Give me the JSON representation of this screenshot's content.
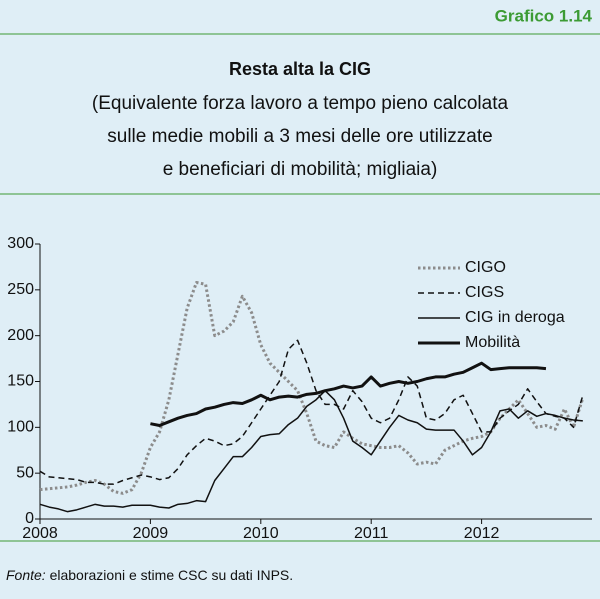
{
  "header": "Grafico 1.14",
  "footer": {
    "source_label": "Fonte:",
    "source_text": " elaborazioni e stime CSC su dati INPS."
  },
  "chart_data": {
    "type": "line",
    "title": "Resta alta la CIG",
    "subtitle": [
      "(Equivalente forza lavoro a tempo pieno calcolata",
      "sulle medie mobili a 3 mesi delle ore utilizzate",
      "e beneficiari di mobilità; migliaia)"
    ],
    "x": [
      2008,
      2008.083,
      2008.167,
      2008.25,
      2008.333,
      2008.417,
      2008.5,
      2008.583,
      2008.667,
      2008.75,
      2008.833,
      2008.917,
      2009,
      2009.083,
      2009.167,
      2009.25,
      2009.333,
      2009.417,
      2009.5,
      2009.583,
      2009.667,
      2009.75,
      2009.833,
      2009.917,
      2010,
      2010.083,
      2010.167,
      2010.25,
      2010.333,
      2010.417,
      2010.5,
      2010.583,
      2010.667,
      2010.75,
      2010.833,
      2010.917,
      2011,
      2011.083,
      2011.167,
      2011.25,
      2011.333,
      2011.417,
      2011.5,
      2011.583,
      2011.667,
      2011.75,
      2011.833,
      2011.917,
      2012,
      2012.083,
      2012.167,
      2012.25,
      2012.333,
      2012.417,
      2012.5,
      2012.583,
      2012.667,
      2012.75,
      2012.833,
      2012.917
    ],
    "series": [
      {
        "name": "CIGO",
        "color": "#8c8c8c",
        "style": "dotted",
        "width": 3,
        "values": [
          32,
          33,
          34,
          35,
          37,
          40,
          42,
          38,
          30,
          28,
          32,
          50,
          78,
          95,
          130,
          180,
          230,
          258,
          256,
          200,
          205,
          215,
          243,
          225,
          190,
          170,
          160,
          150,
          140,
          115,
          85,
          80,
          78,
          95,
          88,
          82,
          80,
          78,
          78,
          80,
          72,
          60,
          62,
          60,
          75,
          80,
          85,
          88,
          90,
          95,
          110,
          120,
          130,
          115,
          100,
          102,
          98,
          120,
          100,
          132
        ]
      },
      {
        "name": "CIGS",
        "color": "#111111",
        "style": "dashed",
        "width": 1.5,
        "values": [
          52,
          46,
          45,
          44,
          43,
          40,
          40,
          38,
          38,
          42,
          45,
          48,
          46,
          43,
          45,
          55,
          70,
          80,
          88,
          85,
          80,
          82,
          90,
          105,
          120,
          135,
          150,
          185,
          195,
          170,
          140,
          125,
          125,
          120,
          140,
          128,
          110,
          105,
          110,
          130,
          155,
          145,
          110,
          108,
          115,
          130,
          135,
          115,
          95,
          95,
          110,
          118,
          125,
          142,
          128,
          115,
          112,
          110,
          100,
          135
        ]
      },
      {
        "name": "CIG in deroga",
        "color": "#111111",
        "style": "solid",
        "width": 1.5,
        "values": [
          16,
          13,
          11,
          8,
          10,
          13,
          16,
          14,
          14,
          13,
          15,
          15,
          15,
          13,
          12,
          16,
          17,
          20,
          19,
          42,
          55,
          68,
          68,
          78,
          90,
          92,
          93,
          103,
          110,
          123,
          130,
          140,
          130,
          110,
          85,
          78,
          70,
          85,
          100,
          113,
          108,
          105,
          98,
          97,
          97,
          97,
          85,
          70,
          78,
          95,
          118,
          120,
          110,
          118,
          112,
          115,
          113,
          110,
          108,
          107
        ]
      },
      {
        "name": "Mobilità",
        "color": "#111111",
        "style": "solid",
        "width": 3,
        "values": [
          null,
          null,
          null,
          null,
          null,
          null,
          null,
          null,
          null,
          null,
          null,
          null,
          104,
          102,
          106,
          110,
          113,
          115,
          120,
          122,
          125,
          127,
          126,
          130,
          135,
          130,
          133,
          134,
          133,
          136,
          137,
          140,
          142,
          145,
          143,
          145,
          155,
          145,
          148,
          150,
          148,
          150,
          153,
          155,
          155,
          158,
          160,
          165,
          170,
          163,
          164,
          165,
          165,
          165,
          165,
          164,
          null,
          null,
          null,
          null
        ]
      }
    ],
    "xlim": [
      2008,
      2013
    ],
    "xticks": [
      2008,
      2009,
      2010,
      2011,
      2012
    ],
    "ylim": [
      0,
      300
    ],
    "yticks": [
      0,
      50,
      100,
      150,
      200,
      250,
      300
    ],
    "legend": "upper right"
  }
}
